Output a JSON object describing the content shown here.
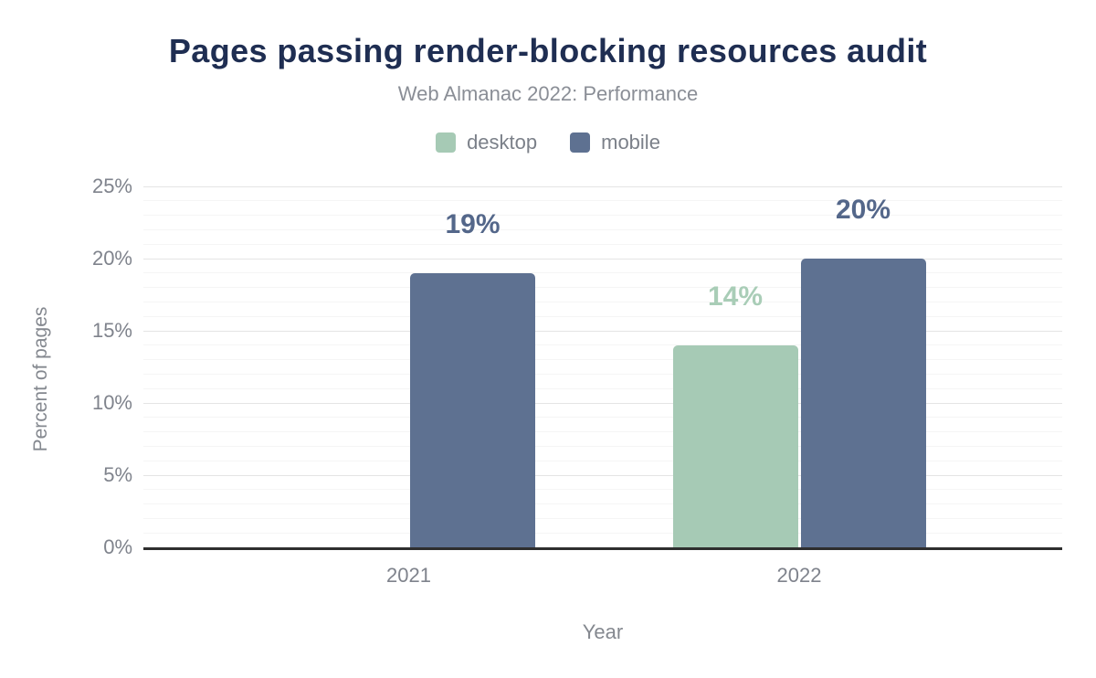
{
  "chart_data": {
    "type": "bar",
    "title": "Pages passing render-blocking resources audit",
    "subtitle": "Web Almanac 2022: Performance",
    "xlabel": "Year",
    "ylabel": "Percent of pages",
    "categories": [
      "2021",
      "2022"
    ],
    "series": [
      {
        "name": "desktop",
        "color": "#a6cab5",
        "label_color": "#a9cdb7",
        "values": [
          null,
          14
        ],
        "value_labels": [
          null,
          "14%"
        ]
      },
      {
        "name": "mobile",
        "color": "#5e7191",
        "label_color": "#54678a",
        "values": [
          19,
          20
        ],
        "value_labels": [
          "19%",
          "20%"
        ]
      }
    ],
    "ylim": [
      0,
      25
    ],
    "ytick_step": 5,
    "minor_grid_step": 1,
    "yticks": [
      "0%",
      "5%",
      "10%",
      "15%",
      "20%",
      "25%"
    ],
    "grid": "on",
    "legend_position": "top-center",
    "colors": {
      "title": "#1f2e52",
      "subtitle": "#8a8e96",
      "axis_text": "#7f838c",
      "baseline": "#2e2e2e",
      "major_grid": "#e4e4e4",
      "minor_grid": "#f5f5f5"
    }
  }
}
